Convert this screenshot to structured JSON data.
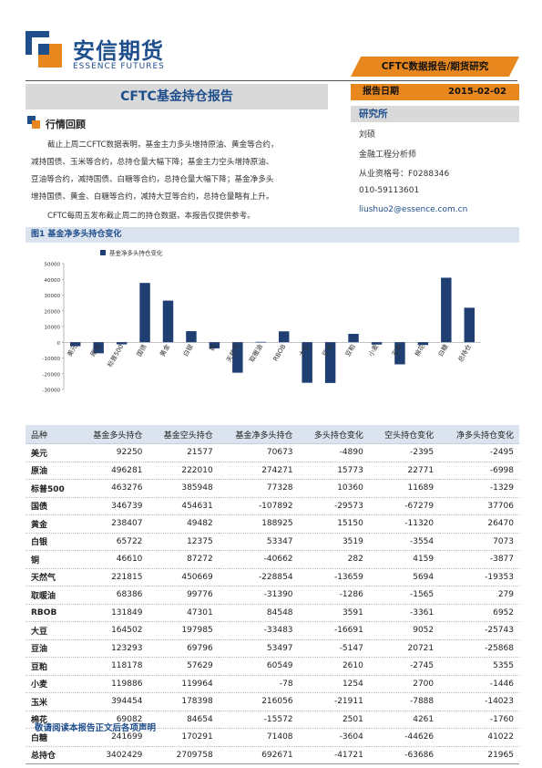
{
  "header": {
    "logo_cn": "安信期货",
    "logo_en": "ESSENCE FUTURES",
    "banner": "CFTC数据报告/期货研究",
    "report_title": "CFTC基金持仓报告",
    "date_label": "报告日期",
    "date_value": "2015-02-02"
  },
  "sidebar": {
    "institute_label": "研究所",
    "analyst_lines": [
      "刘硕",
      "金融工程分析师",
      "从业资格号：F0288346",
      "010-59113601",
      "liushuo2@essence.com.cn"
    ]
  },
  "section": {
    "title": "行情回顾",
    "paragraph1_lines": [
      "截止上周二CFTC数据表明，基金主力多头增持原油、黄金等合约，",
      "减持国债、玉米等合约，总持仓量大幅下降；基金主力空头增持原油、",
      "豆油等合约，减持国债、白糖等合约，总持仓量大幅下降；基金净多头",
      "增持国债、黄金、白糖等合约，减持大豆等合约，总持仓量略有上升。"
    ],
    "paragraph2": "CFTC每周五发布截止周二的持仓数据，本报告仅提供参考。"
  },
  "figure": {
    "caption": "图1 基金净多头持仓变化"
  },
  "chart_data": {
    "type": "bar",
    "legend": "基金净多头持仓变化",
    "categories": [
      "美元",
      "原油",
      "标普500",
      "国债",
      "黄金",
      "白银",
      "铜",
      "天然气",
      "取暖油",
      "RBOB",
      "大豆",
      "豆油",
      "豆粕",
      "小麦",
      "玉米",
      "棉花",
      "白糖",
      "总持仓"
    ],
    "values": [
      -2495,
      -6998,
      -1329,
      37706,
      26470,
      7073,
      -3877,
      -19353,
      279,
      6952,
      -25743,
      -25868,
      5355,
      -1446,
      -14023,
      -1760,
      41022,
      21965
    ],
    "ylim": [
      -30000,
      50000
    ],
    "yticks": [
      "50000",
      "40000",
      "30000",
      "20000",
      "10000",
      "0",
      "-10000",
      "-20000",
      "-30000"
    ],
    "color": "#1f3f73"
  },
  "table": {
    "headers": [
      "品种",
      "基金多头持仓",
      "基金空头持仓",
      "基金净多头持仓",
      "多头持仓变化",
      "空头持仓变化",
      "净多头持仓变化"
    ],
    "rows": [
      [
        "美元",
        "92250",
        "21577",
        "70673",
        "-4890",
        "-2395",
        "-2495"
      ],
      [
        "原油",
        "496281",
        "222010",
        "274271",
        "15773",
        "22771",
        "-6998"
      ],
      [
        "标普500",
        "463276",
        "385948",
        "77328",
        "10360",
        "11689",
        "-1329"
      ],
      [
        "国债",
        "346739",
        "454631",
        "-107892",
        "-29573",
        "-67279",
        "37706"
      ],
      [
        "黄金",
        "238407",
        "49482",
        "188925",
        "15150",
        "-11320",
        "26470"
      ],
      [
        "白银",
        "65722",
        "12375",
        "53347",
        "3519",
        "-3554",
        "7073"
      ],
      [
        "铜",
        "46610",
        "87272",
        "-40662",
        "282",
        "4159",
        "-3877"
      ],
      [
        "天然气",
        "221815",
        "450669",
        "-228854",
        "-13659",
        "5694",
        "-19353"
      ],
      [
        "取暖油",
        "68386",
        "99776",
        "-31390",
        "-1286",
        "-1565",
        "279"
      ],
      [
        "RBOB",
        "131849",
        "47301",
        "84548",
        "3591",
        "-3361",
        "6952"
      ],
      [
        "大豆",
        "164502",
        "197985",
        "-33483",
        "-16691",
        "9052",
        "-25743"
      ],
      [
        "豆油",
        "123293",
        "69796",
        "53497",
        "-5147",
        "20721",
        "-25868"
      ],
      [
        "豆粕",
        "118178",
        "57629",
        "60549",
        "2610",
        "-2745",
        "5355"
      ],
      [
        "小麦",
        "119886",
        "119964",
        "-78",
        "1254",
        "2700",
        "-1446"
      ],
      [
        "玉米",
        "394454",
        "178398",
        "216056",
        "-21911",
        "-7888",
        "-14023"
      ],
      [
        "棉花",
        "69082",
        "84654",
        "-15572",
        "2501",
        "4261",
        "-1760"
      ],
      [
        "白糖",
        "241699",
        "170291",
        "71408",
        "-3604",
        "-44626",
        "41022"
      ],
      [
        "总持仓",
        "3402429",
        "2709758",
        "692671",
        "-41721",
        "-63686",
        "21965"
      ]
    ]
  },
  "footer": {
    "disclaimer": "敬请阅读本报告正文后各项声明"
  },
  "colors": {
    "brand_blue": "#1f4e8c",
    "accent_orange": "#e8871e",
    "bar": "#1f3f73"
  }
}
